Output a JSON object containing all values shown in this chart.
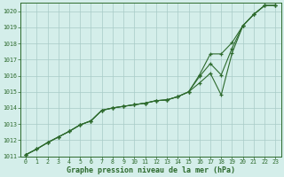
{
  "xlabel": "Graphe pression niveau de la mer (hPa)",
  "background_color": "#d4eeea",
  "grid_color": "#a8cbc7",
  "line_color": "#2d6a2d",
  "ylim": [
    1011,
    1020.5
  ],
  "xlim": [
    -0.5,
    23.5
  ],
  "y_ticks": [
    1011,
    1012,
    1013,
    1014,
    1015,
    1016,
    1017,
    1018,
    1019,
    1020
  ],
  "x_ticks": [
    0,
    1,
    2,
    3,
    4,
    5,
    6,
    7,
    8,
    9,
    10,
    11,
    12,
    13,
    14,
    15,
    16,
    17,
    18,
    19,
    20,
    21,
    22,
    23
  ],
  "line1_x": [
    0,
    1,
    2,
    3,
    4,
    5,
    6,
    7,
    8,
    9,
    10,
    11,
    12,
    13,
    14,
    15,
    16,
    17,
    18,
    19,
    20,
    21,
    22,
    23
  ],
  "line1_y": [
    1011.1,
    1011.45,
    1011.85,
    1012.2,
    1012.55,
    1012.95,
    1013.2,
    1013.85,
    1014.0,
    1014.1,
    1014.2,
    1014.3,
    1014.45,
    1014.5,
    1014.7,
    1015.0,
    1016.05,
    1017.35,
    1017.35,
    1018.05,
    1019.1,
    1019.8,
    1020.35,
    1020.35
  ],
  "line2_x": [
    0,
    1,
    2,
    3,
    4,
    5,
    6,
    7,
    8,
    9,
    10,
    11,
    12,
    13,
    14,
    15,
    16,
    17,
    18,
    19,
    20,
    21,
    22,
    23
  ],
  "line2_y": [
    1011.1,
    1011.45,
    1011.85,
    1012.2,
    1012.55,
    1012.95,
    1013.2,
    1013.85,
    1014.0,
    1014.1,
    1014.2,
    1014.3,
    1014.45,
    1014.5,
    1014.7,
    1015.0,
    1015.55,
    1016.15,
    1014.8,
    1017.4,
    1019.1,
    1019.8,
    1020.35,
    1020.35
  ],
  "line3_x": [
    0,
    1,
    2,
    3,
    4,
    5,
    6,
    7,
    8,
    9,
    10,
    11,
    12,
    13,
    14,
    15,
    16,
    17,
    18,
    19,
    20,
    21,
    22,
    23
  ],
  "line3_y": [
    1011.1,
    1011.45,
    1011.85,
    1012.2,
    1012.55,
    1012.95,
    1013.2,
    1013.85,
    1014.0,
    1014.1,
    1014.2,
    1014.3,
    1014.45,
    1014.5,
    1014.7,
    1015.0,
    1015.95,
    1016.75,
    1016.05,
    1017.7,
    1019.1,
    1019.8,
    1020.35,
    1020.35
  ]
}
